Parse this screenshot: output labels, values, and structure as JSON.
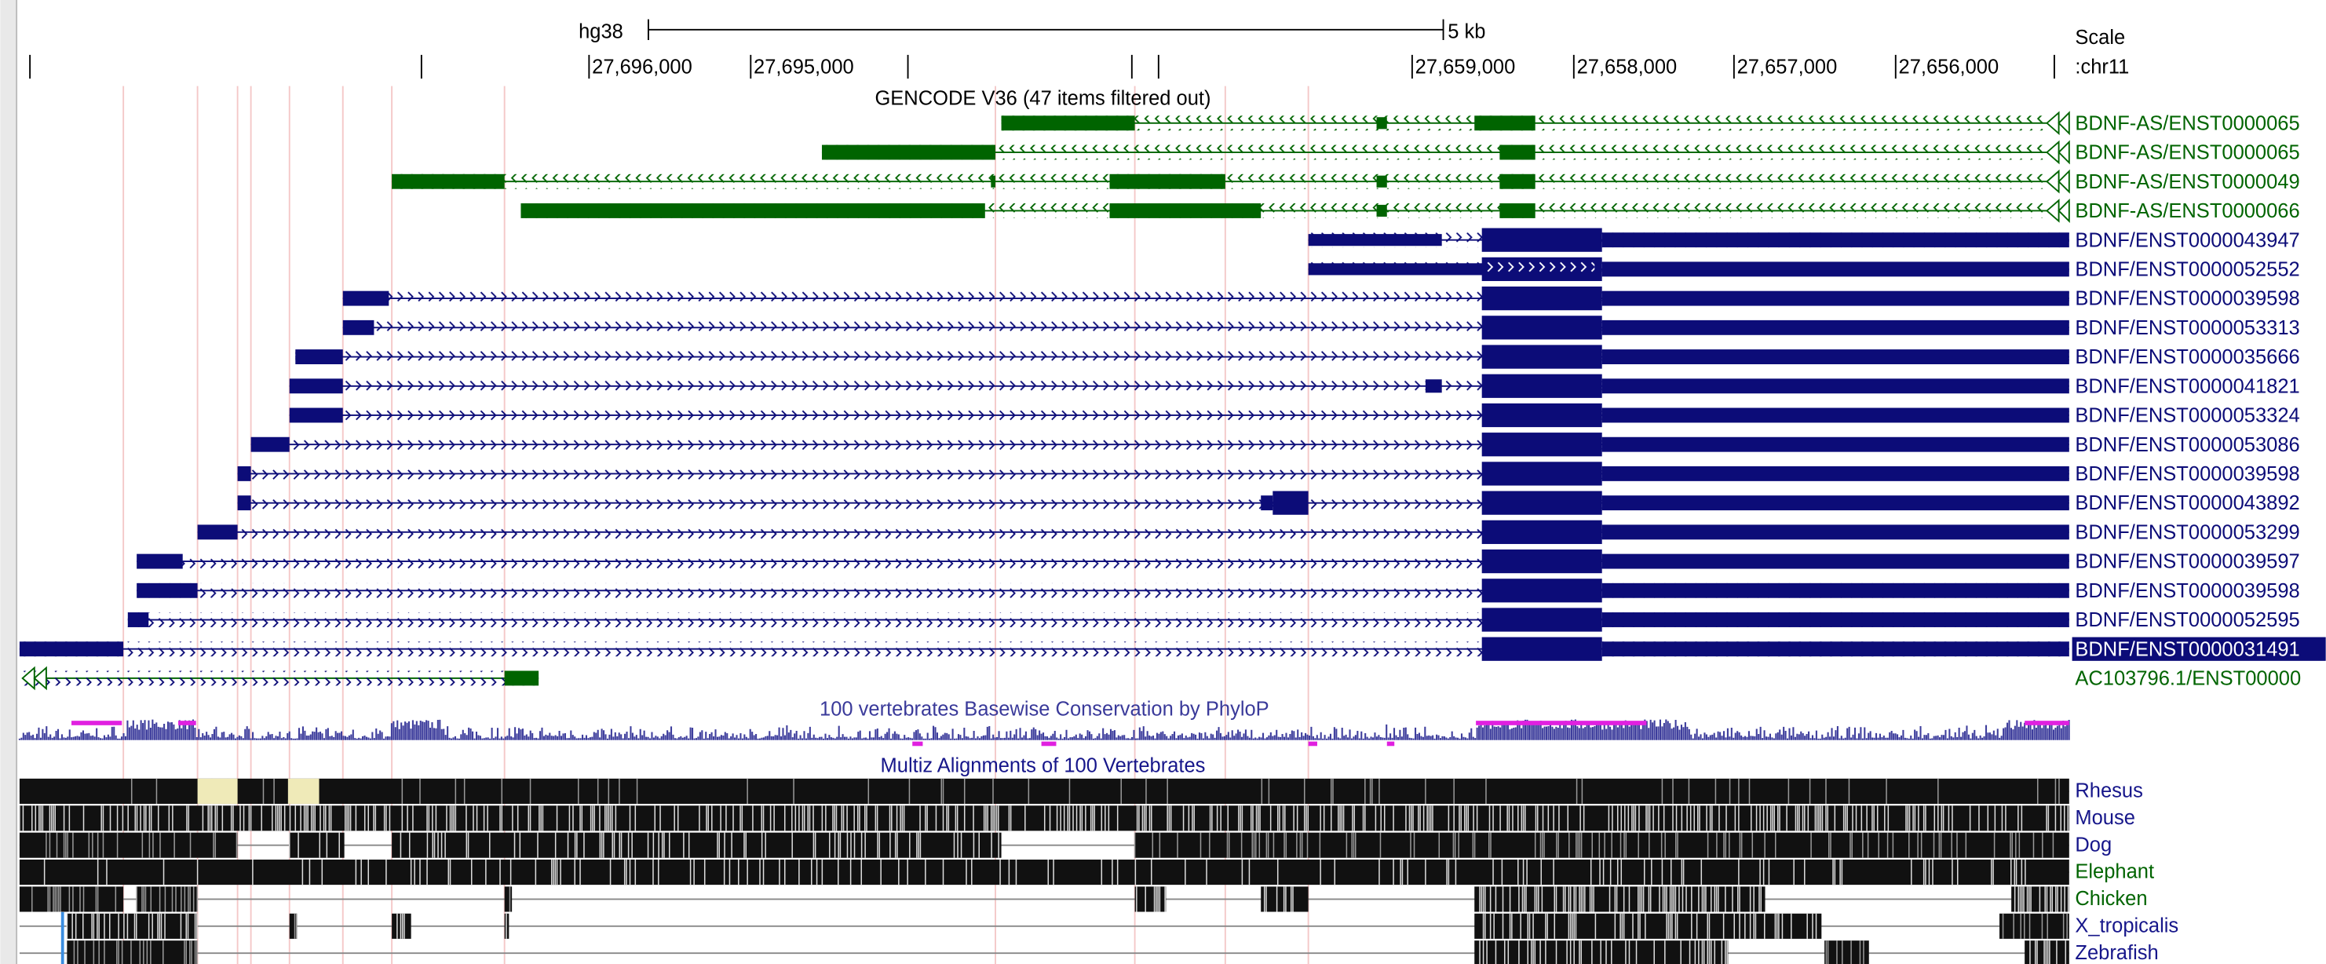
{
  "ruler": {
    "assembly": "hg38",
    "scale_bar": "5 kb",
    "scale_label": "Scale",
    "chromosome": ":chr11",
    "positions": [
      "27,696,000",
      "27,695,000",
      "27,659,000",
      "27,658,000",
      "27,657,000",
      "27,656,000"
    ]
  },
  "tracks": {
    "gencode": {
      "title": "GENCODE V36 (47 items filtered out)",
      "transcripts": [
        {
          "label": "BDNF-AS/ENST0000065",
          "color": "#006400"
        },
        {
          "label": "BDNF-AS/ENST0000065",
          "color": "#006400"
        },
        {
          "label": "BDNF-AS/ENST0000049",
          "color": "#006400"
        },
        {
          "label": "BDNF-AS/ENST0000066",
          "color": "#006400"
        },
        {
          "label": "BDNF/ENST0000043947",
          "color": "#0c0c78"
        },
        {
          "label": "BDNF/ENST0000052552",
          "color": "#0c0c78"
        },
        {
          "label": "BDNF/ENST0000039598",
          "color": "#0c0c78"
        },
        {
          "label": "BDNF/ENST0000053313",
          "color": "#0c0c78"
        },
        {
          "label": "BDNF/ENST0000035666",
          "color": "#0c0c78"
        },
        {
          "label": "BDNF/ENST0000041821",
          "color": "#0c0c78"
        },
        {
          "label": "BDNF/ENST0000053324",
          "color": "#0c0c78"
        },
        {
          "label": "BDNF/ENST0000053086",
          "color": "#0c0c78"
        },
        {
          "label": "BDNF/ENST0000039598",
          "color": "#0c0c78"
        },
        {
          "label": "BDNF/ENST0000043892",
          "color": "#0c0c78"
        },
        {
          "label": "BDNF/ENST0000053299",
          "color": "#0c0c78"
        },
        {
          "label": "BDNF/ENST0000039597",
          "color": "#0c0c78"
        },
        {
          "label": "BDNF/ENST0000039598",
          "color": "#0c0c78"
        },
        {
          "label": "BDNF/ENST0000052595",
          "color": "#0c0c78"
        },
        {
          "label": "BDNF/ENST0000031491",
          "color": "#0c0c78"
        },
        {
          "label": "AC103796.1/ENST00000",
          "color": "#006400"
        }
      ]
    },
    "phylop": {
      "title": "100 vertebrates Basewise Conservation by PhyloP"
    },
    "multiz": {
      "title": "Multiz Alignments of 100 Vertebrates",
      "species": [
        "Rhesus",
        "Mouse",
        "Dog",
        "Elephant",
        "Chicken",
        "X_tropicalis",
        "Zebrafish"
      ]
    }
  }
}
